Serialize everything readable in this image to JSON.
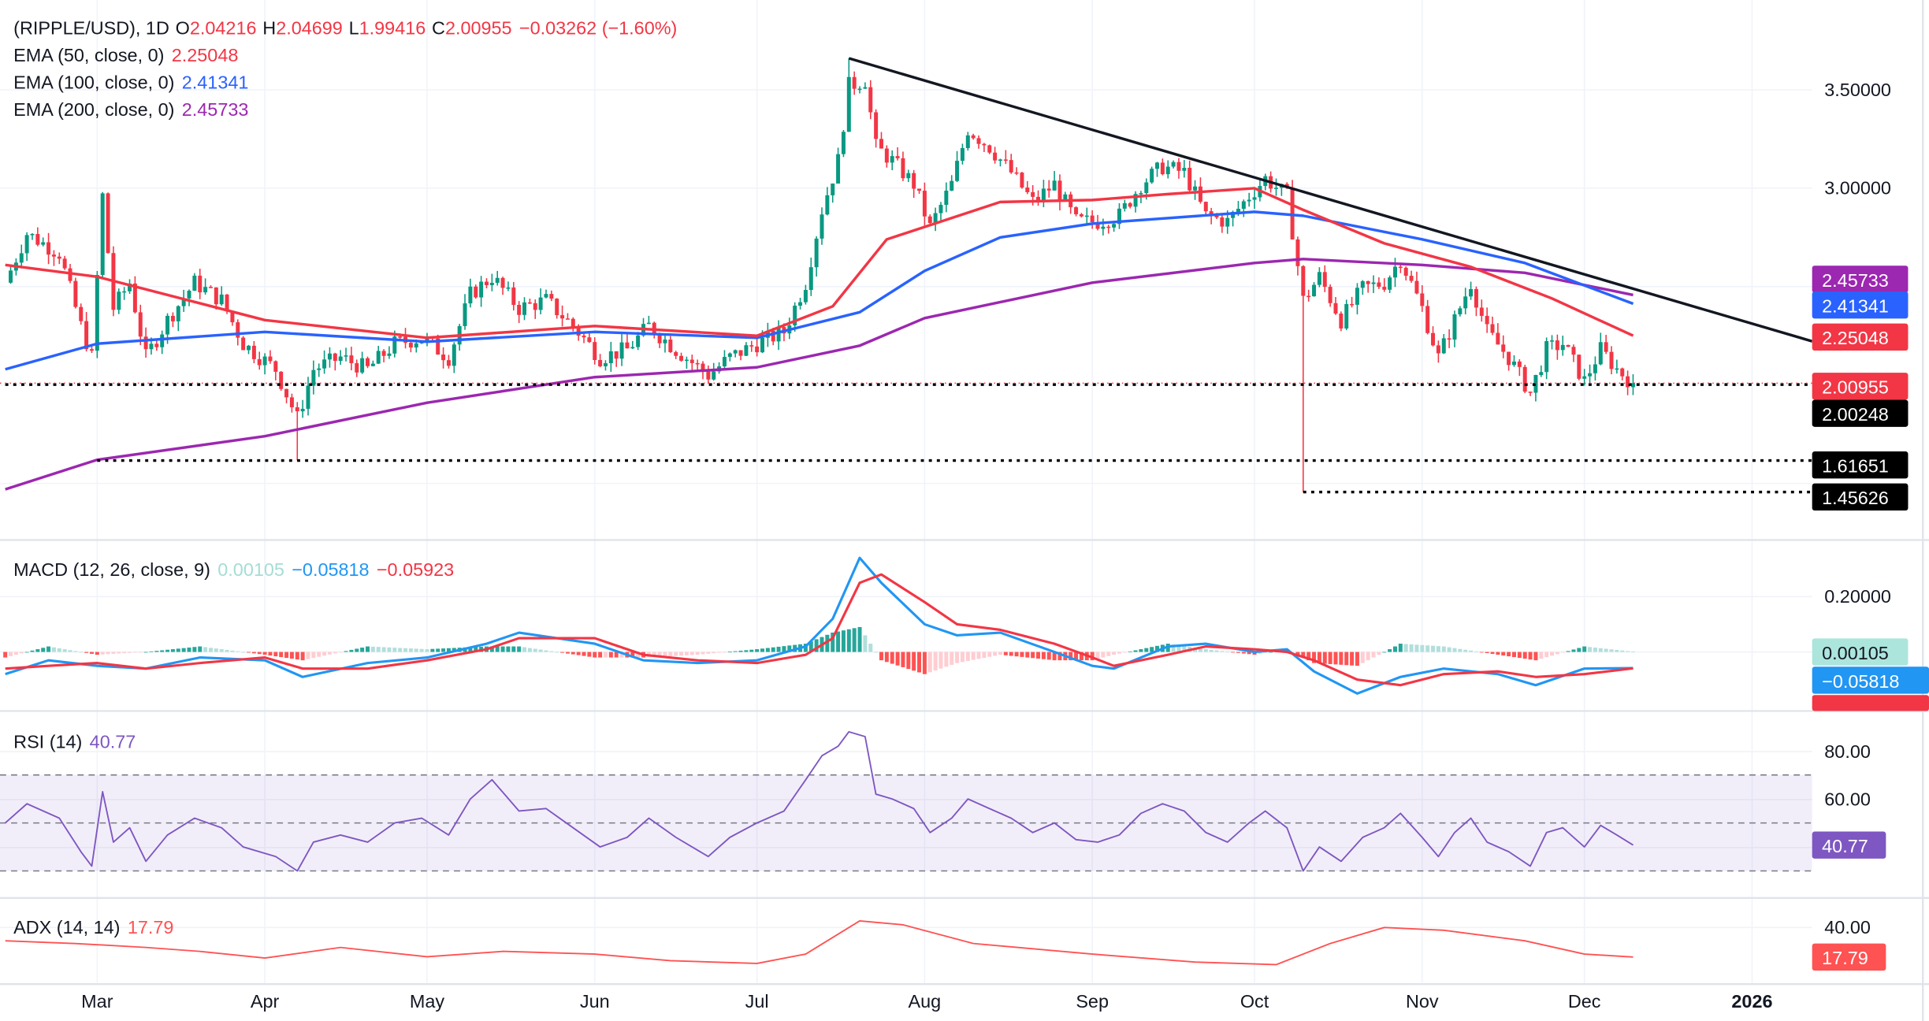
{
  "legend": {
    "symbol": "(RIPPLE/USD), 1D",
    "o_label": "O",
    "o": "2.04216",
    "h_label": "H",
    "h": "2.04699",
    "l_label": "L",
    "l": "1.99416",
    "c_label": "C",
    "c": "2.00955",
    "change": "−0.03262 (−1.60%)",
    "ema50_label": "EMA (50, close, 0)",
    "ema50": "2.25048",
    "ema100_label": "EMA (100, close, 0)",
    "ema100": "2.41341",
    "ema200_label": "EMA (200, close, 0)",
    "ema200": "2.45733",
    "macd_label": "MACD (12, 26, close, 9)",
    "macd_hist": "0.00105",
    "macd": "−0.05818",
    "macd_signal": "−0.05923",
    "rsi_label": "RSI (14)",
    "rsi": "40.77",
    "adx_label": "ADX (14, 14)",
    "adx": "17.79"
  },
  "colors": {
    "up": "#089981",
    "down": "#f23645",
    "ema50": "#f23645",
    "ema100": "#2962ff",
    "ema200": "#9c27b0",
    "macd": "#2196f3",
    "signal": "#f23645",
    "rsi": "#7e57c2",
    "adx": "#ff5252",
    "trendline": "#131722"
  },
  "axis": {
    "price_ticks": [
      "3.50000",
      "3.00000"
    ],
    "macd_ticks": [
      "0.20000"
    ],
    "rsi_ticks": [
      "80.00",
      "60.00"
    ],
    "adx_ticks": [
      "40.00"
    ],
    "x_ticks": [
      [
        "2025-03-01",
        "Mar"
      ],
      [
        "2025-04-01",
        "Apr"
      ],
      [
        "2025-05-01",
        "May"
      ],
      [
        "2025-06-01",
        "Jun"
      ],
      [
        "2025-07-01",
        "Jul"
      ],
      [
        "2025-08-01",
        "Aug"
      ],
      [
        "2025-09-01",
        "Sep"
      ],
      [
        "2025-10-01",
        "Oct"
      ],
      [
        "2025-11-01",
        "Nov"
      ],
      [
        "2025-12-01",
        "Dec"
      ],
      [
        "2026-01-01",
        "2026"
      ]
    ]
  },
  "price_tags": [
    {
      "value": "2.45733",
      "color": "#9c27b0",
      "price": 2.45733
    },
    {
      "value": "2.41341",
      "color": "#2962ff",
      "price": 2.41341
    },
    {
      "value": "2.25048",
      "color": "#f23645",
      "price": 2.25048
    },
    {
      "value": "2.00955",
      "color": "#f23645",
      "price": 2.00955
    },
    {
      "value": "2.00248",
      "color": "#000000",
      "price": 2.00248
    },
    {
      "value": "1.61651",
      "color": "#000000",
      "price": 1.61651
    },
    {
      "value": "1.45626",
      "color": "#000000",
      "price": 1.45626
    }
  ],
  "chart_data": [
    {
      "type": "candlestick",
      "title": "(RIPPLE/USD), 1D",
      "approx_close": [
        [
          "2025-02-12",
          2.52
        ],
        [
          "2025-02-16",
          2.77
        ],
        [
          "2025-02-22",
          2.67
        ],
        [
          "2025-02-26",
          2.3
        ],
        [
          "2025-02-28",
          2.14
        ],
        [
          "2025-03-02",
          2.96
        ],
        [
          "2025-03-04",
          2.39
        ],
        [
          "2025-03-07",
          2.52
        ],
        [
          "2025-03-10",
          2.14
        ],
        [
          "2025-03-14",
          2.33
        ],
        [
          "2025-03-19",
          2.52
        ],
        [
          "2025-03-24",
          2.43
        ],
        [
          "2025-03-28",
          2.21
        ],
        [
          "2025-04-03",
          2.08
        ],
        [
          "2025-04-07",
          1.83
        ],
        [
          "2025-04-10",
          2.08
        ],
        [
          "2025-04-15",
          2.14
        ],
        [
          "2025-04-20",
          2.08
        ],
        [
          "2025-04-25",
          2.21
        ],
        [
          "2025-04-30",
          2.24
        ],
        [
          "2025-05-05",
          2.14
        ],
        [
          "2025-05-09",
          2.46
        ],
        [
          "2025-05-13",
          2.55
        ],
        [
          "2025-05-18",
          2.39
        ],
        [
          "2025-05-23",
          2.43
        ],
        [
          "2025-05-28",
          2.3
        ],
        [
          "2025-06-02",
          2.14
        ],
        [
          "2025-06-07",
          2.18
        ],
        [
          "2025-06-11",
          2.3
        ],
        [
          "2025-06-16",
          2.18
        ],
        [
          "2025-06-22",
          2.05
        ],
        [
          "2025-06-26",
          2.14
        ],
        [
          "2025-07-01",
          2.21
        ],
        [
          "2025-07-06",
          2.27
        ],
        [
          "2025-07-10",
          2.52
        ],
        [
          "2025-07-13",
          2.89
        ],
        [
          "2025-07-16",
          3.14
        ],
        [
          "2025-07-18",
          3.52
        ],
        [
          "2025-07-21",
          3.55
        ],
        [
          "2025-07-23",
          3.21
        ],
        [
          "2025-07-26",
          3.14
        ],
        [
          "2025-07-30",
          3.02
        ],
        [
          "2025-08-02",
          2.8
        ],
        [
          "2025-08-06",
          3.02
        ],
        [
          "2025-08-09",
          3.3
        ],
        [
          "2025-08-13",
          3.21
        ],
        [
          "2025-08-17",
          3.08
        ],
        [
          "2025-08-21",
          2.93
        ],
        [
          "2025-08-25",
          3.02
        ],
        [
          "2025-08-29",
          2.83
        ],
        [
          "2025-09-02",
          2.83
        ],
        [
          "2025-09-06",
          2.86
        ],
        [
          "2025-09-10",
          3.02
        ],
        [
          "2025-09-14",
          3.11
        ],
        [
          "2025-09-18",
          3.08
        ],
        [
          "2025-09-22",
          2.86
        ],
        [
          "2025-09-26",
          2.83
        ],
        [
          "2025-09-30",
          2.96
        ],
        [
          "2025-10-03",
          3.05
        ],
        [
          "2025-10-07",
          2.96
        ],
        [
          "2025-10-10",
          2.43
        ],
        [
          "2025-10-13",
          2.55
        ],
        [
          "2025-10-17",
          2.33
        ],
        [
          "2025-10-21",
          2.49
        ],
        [
          "2025-10-25",
          2.52
        ],
        [
          "2025-10-28",
          2.64
        ],
        [
          "2025-11-01",
          2.39
        ],
        [
          "2025-11-04",
          2.14
        ],
        [
          "2025-11-07",
          2.33
        ],
        [
          "2025-11-10",
          2.52
        ],
        [
          "2025-11-13",
          2.27
        ],
        [
          "2025-11-17",
          2.14
        ],
        [
          "2025-11-21",
          1.96
        ],
        [
          "2025-11-24",
          2.18
        ],
        [
          "2025-11-27",
          2.21
        ],
        [
          "2025-12-01",
          2.02
        ],
        [
          "2025-12-04",
          2.18
        ],
        [
          "2025-12-07",
          2.08
        ],
        [
          "2025-12-10",
          2.00955
        ]
      ],
      "notable_lows": [
        [
          "2025-04-07",
          1.61651
        ],
        [
          "2025-10-10",
          1.45626
        ]
      ],
      "ema50": [
        [
          "2025-02-12",
          2.61
        ],
        [
          "2025-03-01",
          2.55
        ],
        [
          "2025-04-01",
          2.33
        ],
        [
          "2025-05-01",
          2.24
        ],
        [
          "2025-06-01",
          2.3
        ],
        [
          "2025-07-01",
          2.25
        ],
        [
          "2025-07-15",
          2.4
        ],
        [
          "2025-07-25",
          2.74
        ],
        [
          "2025-08-15",
          2.93
        ],
        [
          "2025-09-01",
          2.94
        ],
        [
          "2025-09-15",
          2.97
        ],
        [
          "2025-10-01",
          3.0
        ],
        [
          "2025-10-10",
          2.89
        ],
        [
          "2025-10-25",
          2.72
        ],
        [
          "2025-11-10",
          2.6
        ],
        [
          "2025-11-25",
          2.44
        ],
        [
          "2025-12-10",
          2.25048
        ]
      ],
      "ema100": [
        [
          "2025-02-12",
          2.08
        ],
        [
          "2025-03-01",
          2.21
        ],
        [
          "2025-04-01",
          2.27
        ],
        [
          "2025-05-01",
          2.22
        ],
        [
          "2025-06-01",
          2.27
        ],
        [
          "2025-07-01",
          2.24
        ],
        [
          "2025-07-20",
          2.37
        ],
        [
          "2025-08-01",
          2.58
        ],
        [
          "2025-08-15",
          2.75
        ],
        [
          "2025-09-01",
          2.82
        ],
        [
          "2025-10-01",
          2.88
        ],
        [
          "2025-10-10",
          2.86
        ],
        [
          "2025-11-01",
          2.74
        ],
        [
          "2025-11-20",
          2.62
        ],
        [
          "2025-12-10",
          2.41341
        ]
      ],
      "ema200": [
        [
          "2025-02-12",
          1.47
        ],
        [
          "2025-03-01",
          1.62
        ],
        [
          "2025-04-01",
          1.74
        ],
        [
          "2025-05-01",
          1.91
        ],
        [
          "2025-06-01",
          2.04
        ],
        [
          "2025-07-01",
          2.09
        ],
        [
          "2025-07-20",
          2.2
        ],
        [
          "2025-08-01",
          2.34
        ],
        [
          "2025-09-01",
          2.52
        ],
        [
          "2025-10-01",
          2.62
        ],
        [
          "2025-10-10",
          2.64
        ],
        [
          "2025-11-01",
          2.61
        ],
        [
          "2025-11-20",
          2.57
        ],
        [
          "2025-12-10",
          2.45733
        ]
      ],
      "trendline": [
        [
          "2025-07-18",
          3.66
        ],
        [
          "2025-12-31",
          2.32
        ]
      ],
      "horizontal_levels": [
        [
          "2025-02-12",
          2.00248
        ],
        [
          "2025-03-01",
          1.61651
        ],
        [
          "2025-10-10",
          1.45626
        ]
      ],
      "ylim": [
        1.4,
        3.8
      ]
    },
    {
      "type": "line",
      "title": "MACD (12, 26, close, 9)",
      "macd_signal": [
        [
          "2025-02-12",
          -0.08,
          -0.06
        ],
        [
          "2025-02-20",
          -0.03,
          -0.05
        ],
        [
          "2025-03-01",
          -0.05,
          -0.04
        ],
        [
          "2025-03-10",
          -0.06,
          -0.06
        ],
        [
          "2025-03-20",
          -0.02,
          -0.04
        ],
        [
          "2025-04-01",
          -0.03,
          -0.02
        ],
        [
          "2025-04-08",
          -0.09,
          -0.06
        ],
        [
          "2025-04-20",
          -0.04,
          -0.06
        ],
        [
          "2025-05-01",
          -0.02,
          -0.03
        ],
        [
          "2025-05-12",
          0.03,
          0.01
        ],
        [
          "2025-05-18",
          0.07,
          0.05
        ],
        [
          "2025-06-01",
          0.03,
          0.05
        ],
        [
          "2025-06-10",
          -0.03,
          -0.01
        ],
        [
          "2025-06-20",
          -0.04,
          -0.03
        ],
        [
          "2025-07-01",
          -0.03,
          -0.04
        ],
        [
          "2025-07-10",
          0.02,
          -0.01
        ],
        [
          "2025-07-15",
          0.12,
          0.05
        ],
        [
          "2025-07-20",
          0.34,
          0.25
        ],
        [
          "2025-07-24",
          0.25,
          0.28
        ],
        [
          "2025-08-01",
          0.1,
          0.18
        ],
        [
          "2025-08-07",
          0.06,
          0.1
        ],
        [
          "2025-08-15",
          0.07,
          0.08
        ],
        [
          "2025-08-25",
          0.0,
          0.03
        ],
        [
          "2025-09-01",
          -0.05,
          -0.02
        ],
        [
          "2025-09-05",
          -0.06,
          -0.05
        ],
        [
          "2025-09-15",
          0.02,
          -0.01
        ],
        [
          "2025-09-22",
          0.03,
          0.02
        ],
        [
          "2025-10-01",
          0.0,
          0.01
        ],
        [
          "2025-10-07",
          0.01,
          0.0
        ],
        [
          "2025-10-12",
          -0.07,
          -0.03
        ],
        [
          "2025-10-20",
          -0.15,
          -0.1
        ],
        [
          "2025-10-28",
          -0.09,
          -0.12
        ],
        [
          "2025-11-05",
          -0.06,
          -0.08
        ],
        [
          "2025-11-15",
          -0.08,
          -0.07
        ],
        [
          "2025-11-22",
          -0.12,
          -0.09
        ],
        [
          "2025-12-01",
          -0.06,
          -0.08
        ],
        [
          "2025-12-10",
          -0.05818,
          -0.05923
        ]
      ]
    },
    {
      "type": "line",
      "title": "RSI (14)",
      "bands": [
        30,
        50,
        70
      ],
      "values": [
        [
          "2025-02-12",
          50
        ],
        [
          "2025-02-16",
          58
        ],
        [
          "2025-02-22",
          52
        ],
        [
          "2025-02-26",
          38
        ],
        [
          "2025-02-28",
          32
        ],
        [
          "2025-03-02",
          63
        ],
        [
          "2025-03-04",
          42
        ],
        [
          "2025-03-07",
          48
        ],
        [
          "2025-03-10",
          34
        ],
        [
          "2025-03-14",
          45
        ],
        [
          "2025-03-19",
          52
        ],
        [
          "2025-03-24",
          48
        ],
        [
          "2025-03-28",
          40
        ],
        [
          "2025-04-03",
          36
        ],
        [
          "2025-04-07",
          30
        ],
        [
          "2025-04-10",
          42
        ],
        [
          "2025-04-15",
          45
        ],
        [
          "2025-04-20",
          42
        ],
        [
          "2025-04-25",
          50
        ],
        [
          "2025-04-30",
          52
        ],
        [
          "2025-05-05",
          45
        ],
        [
          "2025-05-09",
          60
        ],
        [
          "2025-05-13",
          68
        ],
        [
          "2025-05-18",
          55
        ],
        [
          "2025-05-23",
          56
        ],
        [
          "2025-05-28",
          48
        ],
        [
          "2025-06-02",
          40
        ],
        [
          "2025-06-07",
          44
        ],
        [
          "2025-06-11",
          52
        ],
        [
          "2025-06-16",
          44
        ],
        [
          "2025-06-22",
          36
        ],
        [
          "2025-06-26",
          44
        ],
        [
          "2025-07-01",
          50
        ],
        [
          "2025-07-06",
          55
        ],
        [
          "2025-07-10",
          68
        ],
        [
          "2025-07-13",
          78
        ],
        [
          "2025-07-16",
          82
        ],
        [
          "2025-07-18",
          88
        ],
        [
          "2025-07-21",
          86
        ],
        [
          "2025-07-23",
          62
        ],
        [
          "2025-07-26",
          60
        ],
        [
          "2025-07-30",
          56
        ],
        [
          "2025-08-02",
          46
        ],
        [
          "2025-08-06",
          52
        ],
        [
          "2025-08-09",
          60
        ],
        [
          "2025-08-13",
          56
        ],
        [
          "2025-08-17",
          52
        ],
        [
          "2025-08-21",
          46
        ],
        [
          "2025-08-25",
          50
        ],
        [
          "2025-08-29",
          43
        ],
        [
          "2025-09-02",
          42
        ],
        [
          "2025-09-06",
          45
        ],
        [
          "2025-09-10",
          54
        ],
        [
          "2025-09-14",
          58
        ],
        [
          "2025-09-18",
          55
        ],
        [
          "2025-09-22",
          46
        ],
        [
          "2025-09-26",
          42
        ],
        [
          "2025-09-30",
          50
        ],
        [
          "2025-10-03",
          55
        ],
        [
          "2025-10-07",
          48
        ],
        [
          "2025-10-10",
          30
        ],
        [
          "2025-10-13",
          40
        ],
        [
          "2025-10-17",
          34
        ],
        [
          "2025-10-21",
          44
        ],
        [
          "2025-10-25",
          48
        ],
        [
          "2025-10-28",
          54
        ],
        [
          "2025-11-01",
          44
        ],
        [
          "2025-11-04",
          36
        ],
        [
          "2025-11-07",
          46
        ],
        [
          "2025-11-10",
          52
        ],
        [
          "2025-11-13",
          42
        ],
        [
          "2025-11-17",
          38
        ],
        [
          "2025-11-21",
          32
        ],
        [
          "2025-11-24",
          46
        ],
        [
          "2025-11-27",
          48
        ],
        [
          "2025-12-01",
          40
        ],
        [
          "2025-12-04",
          49
        ],
        [
          "2025-12-07",
          45
        ],
        [
          "2025-12-10",
          40.77
        ]
      ]
    },
    {
      "type": "line",
      "title": "ADX (14, 14)",
      "values": [
        [
          "2025-02-12",
          30
        ],
        [
          "2025-02-25",
          28
        ],
        [
          "2025-03-10",
          25
        ],
        [
          "2025-03-20",
          22
        ],
        [
          "2025-04-01",
          17
        ],
        [
          "2025-04-15",
          25
        ],
        [
          "2025-05-01",
          18
        ],
        [
          "2025-05-15",
          22
        ],
        [
          "2025-06-01",
          20
        ],
        [
          "2025-06-15",
          15
        ],
        [
          "2025-07-01",
          13
        ],
        [
          "2025-07-10",
          20
        ],
        [
          "2025-07-20",
          45
        ],
        [
          "2025-07-28",
          42
        ],
        [
          "2025-08-10",
          28
        ],
        [
          "2025-09-01",
          20
        ],
        [
          "2025-09-20",
          14
        ],
        [
          "2025-10-05",
          12
        ],
        [
          "2025-10-15",
          28
        ],
        [
          "2025-10-25",
          40
        ],
        [
          "2025-11-05",
          38
        ],
        [
          "2025-11-20",
          30
        ],
        [
          "2025-12-01",
          20
        ],
        [
          "2025-12-10",
          17.79
        ]
      ]
    }
  ]
}
